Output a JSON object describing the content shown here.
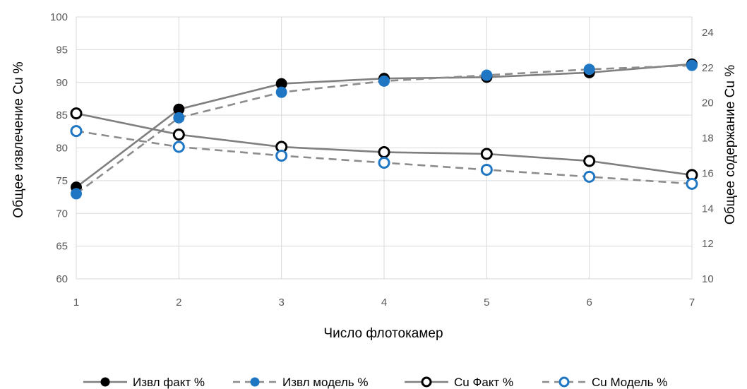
{
  "chart_data": {
    "type": "line",
    "x": [
      1,
      2,
      3,
      4,
      5,
      6,
      7
    ],
    "xlabel": "Число флотокамер",
    "ylabel_left": "Общее извлечение Cu %",
    "ylabel_right": "Общее содержание  Cu %",
    "ylim_left": [
      60,
      100
    ],
    "ylim_right": [
      10,
      24
    ],
    "yticks_left": [
      60,
      65,
      70,
      75,
      80,
      85,
      90,
      95,
      100
    ],
    "yticks_right": [
      10,
      12,
      14,
      16,
      18,
      20,
      22,
      24
    ],
    "grid": true,
    "legend_position": "bottom",
    "series": [
      {
        "name": "Извл факт %",
        "axis": "left",
        "style": "solid-filled",
        "color": "#000000",
        "line_color": "#7f7f7f",
        "values": [
          74.0,
          85.9,
          89.8,
          90.6,
          90.8,
          91.5,
          92.8
        ]
      },
      {
        "name": "Извл модель %",
        "axis": "left",
        "style": "dashed-filled",
        "color": "#1f77c4",
        "line_color": "#8c8c8c",
        "values": [
          73.0,
          84.6,
          88.5,
          90.2,
          91.1,
          92.0,
          92.6
        ]
      },
      {
        "name": "Cu Факт %",
        "axis": "right",
        "style": "solid-open",
        "color": "#000000",
        "line_color": "#7f7f7f",
        "values": [
          19.4,
          18.2,
          17.5,
          17.2,
          17.1,
          16.7,
          15.9
        ]
      },
      {
        "name": "Cu Модель %",
        "axis": "right",
        "style": "dashed-open",
        "color": "#1f77c4",
        "line_color": "#8c8c8c",
        "values": [
          18.4,
          17.5,
          17.0,
          16.6,
          16.2,
          15.8,
          15.4
        ]
      }
    ]
  }
}
